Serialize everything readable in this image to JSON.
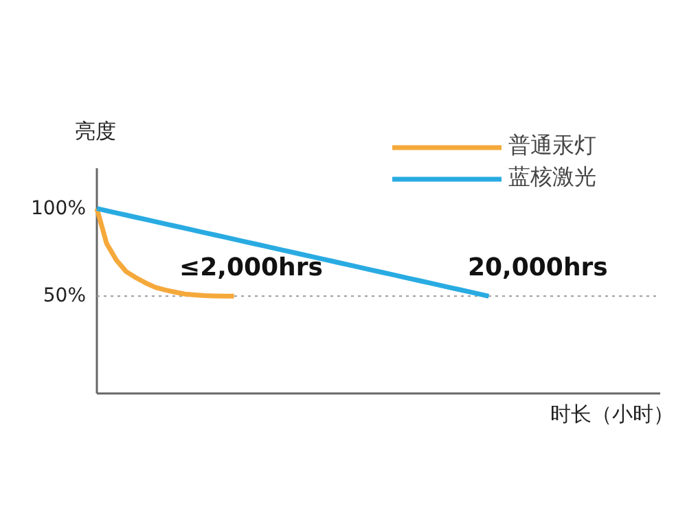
{
  "chart_data": {
    "type": "line",
    "ylabel": "亮度",
    "xlabel": "时长（小时）",
    "categories": [
      null,
      null,
      null,
      null,
      null,
      null,
      null,
      null,
      null,
      null,
      null,
      null,
      null,
      null,
      null,
      null,
      null,
      null,
      null,
      null,
      null,
      null,
      null,
      null,
      null,
      null,
      null,
      null,
      null,
      null,
      null,
      null,
      null,
      null,
      null,
      null,
      null,
      null,
      null,
      null,
      null,
      null,
      null,
      null,
      null,
      null,
      null,
      null,
      null,
      null,
      null,
      null,
      null,
      null,
      null,
      null,
      null,
      null
    ],
    "ylim": [
      -5.5,
      123
    ],
    "yticks": [
      {
        "value": 100,
        "label": "100%"
      },
      {
        "value": 50,
        "label": "50%"
      }
    ],
    "tick_labels": "y",
    "legend": "top right",
    "series": [
      {
        "name": "普通汞灯",
        "color": "#f5a93b",
        "values": [
          100,
          80,
          70.5,
          64,
          60.5,
          57.5,
          55,
          53.5,
          52.3,
          51.2,
          50.7,
          50.3,
          50.1,
          50,
          50,
          null,
          null,
          null,
          null,
          null,
          null,
          null,
          null,
          null,
          null,
          null,
          null,
          null,
          null,
          null,
          null,
          null,
          null,
          null,
          null,
          null,
          null,
          null,
          null,
          null,
          null,
          null,
          null,
          null,
          null,
          null,
          null,
          null,
          null,
          null,
          null,
          null,
          null,
          null,
          null,
          null,
          null,
          null
        ]
      },
      {
        "name": "蓝核激光",
        "color": "#29abe2",
        "values": [
          100,
          98.75,
          97.5,
          96.25,
          95,
          93.75,
          92.5,
          91.25,
          90,
          88.75,
          87.5,
          86.25,
          85,
          83.75,
          82.5,
          81.25,
          80,
          78.75,
          77.5,
          76.25,
          75,
          73.75,
          72.5,
          71.25,
          70,
          68.75,
          67.5,
          66.25,
          65,
          63.75,
          62.5,
          61.25,
          60,
          58.75,
          57.5,
          56.25,
          55,
          53.75,
          52.5,
          51.25,
          50,
          null,
          null,
          null,
          null,
          null,
          null,
          null,
          null,
          null,
          null,
          null,
          null,
          null,
          null,
          null,
          null,
          null
        ]
      }
    ],
    "ref_lines": [
      {
        "axis": "y",
        "value": 50,
        "color": "#999999",
        "line_style": "dotted"
      }
    ],
    "annotations": [
      "≤2,000hrs",
      "20,000hrs"
    ]
  }
}
